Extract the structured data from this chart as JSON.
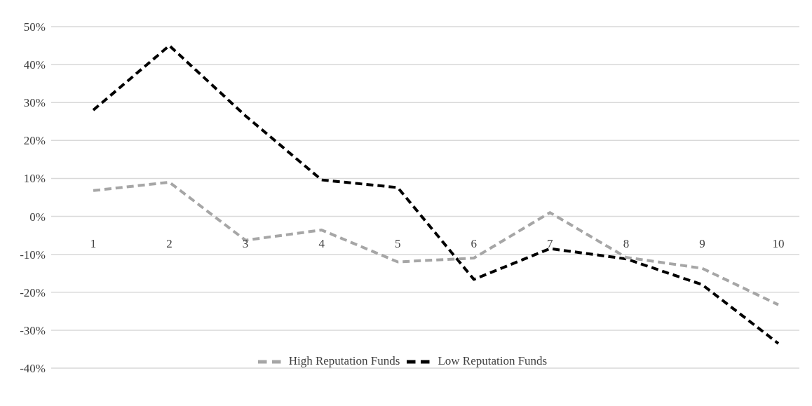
{
  "chart_data": {
    "type": "line",
    "categories": [
      "1",
      "2",
      "3",
      "4",
      "5",
      "6",
      "7",
      "8",
      "9",
      "10"
    ],
    "series": [
      {
        "name": "Low Reputation Funds",
        "color": "#000000",
        "values": [
          28,
          45,
          26.5,
          9.6,
          7.6,
          -16.6,
          -8.5,
          -11.2,
          -18,
          -33.5
        ]
      },
      {
        "name": "High Reputation Funds",
        "color": "#a6a6a6",
        "values": [
          6.8,
          9,
          -6.3,
          -3.6,
          -12,
          -11,
          1,
          -10.8,
          -13.7,
          -23.3
        ]
      }
    ],
    "ylim": [
      -40,
      50
    ],
    "yticks": [
      {
        "value": -40,
        "label": "-40%"
      },
      {
        "value": -30,
        "label": "-30%"
      },
      {
        "value": -20,
        "label": "-20%"
      },
      {
        "value": -10,
        "label": "-10%"
      },
      {
        "value": 0,
        "label": "0%"
      },
      {
        "value": 10,
        "label": "10%"
      },
      {
        "value": 20,
        "label": "20%"
      },
      {
        "value": 30,
        "label": "30%"
      },
      {
        "value": 40,
        "label": "40%"
      },
      {
        "value": 50,
        "label": "50%"
      }
    ],
    "grid": "y",
    "legend": "bottom",
    "marker": "none",
    "line_style": "dashed"
  }
}
